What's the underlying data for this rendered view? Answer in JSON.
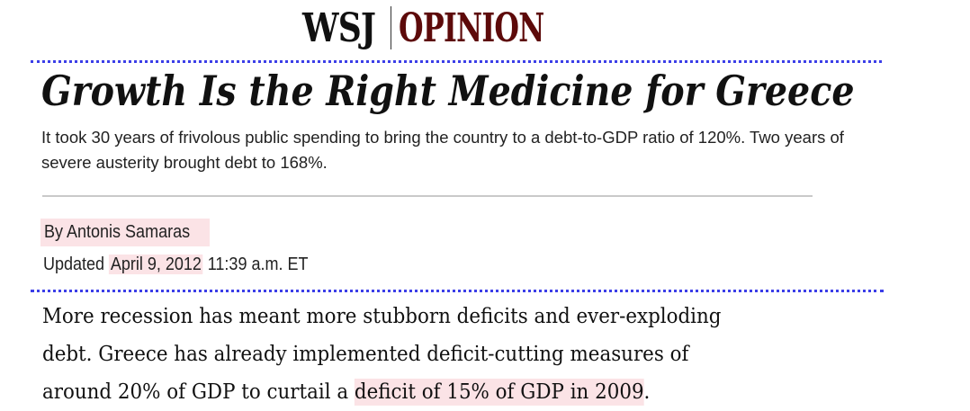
{
  "masthead": {
    "brand": "WSJ",
    "section": "OPINION",
    "brand_color": "#111111",
    "section_color": "#5d0a0a"
  },
  "article": {
    "headline": "Growth Is the Right Medicine for Greece",
    "dek": "It took 30 years of frivolous public spending to bring the country to a debt-to-GDP ratio of 120%. Two years of severe austerity brought debt to 168%.",
    "byline": "By Antonis Samaras",
    "updated_label": "Updated",
    "updated_date": "April 9, 2012",
    "updated_time": "11:39 a.m. ET",
    "body": {
      "line1": "More recession has meant more stubborn deficits and ever-exploding",
      "line2": "debt. Greece has already implemented deficit-cutting measures of",
      "line3_prefix": "around 20% of GDP to curtail a ",
      "line3_highlight": "deficit of 15% of GDP in 2009",
      "line3_suffix": "."
    }
  },
  "colors": {
    "highlight": "#fbe3e6",
    "dotted_rule": "#3b3ee8",
    "divider": "#c9c9c9"
  }
}
